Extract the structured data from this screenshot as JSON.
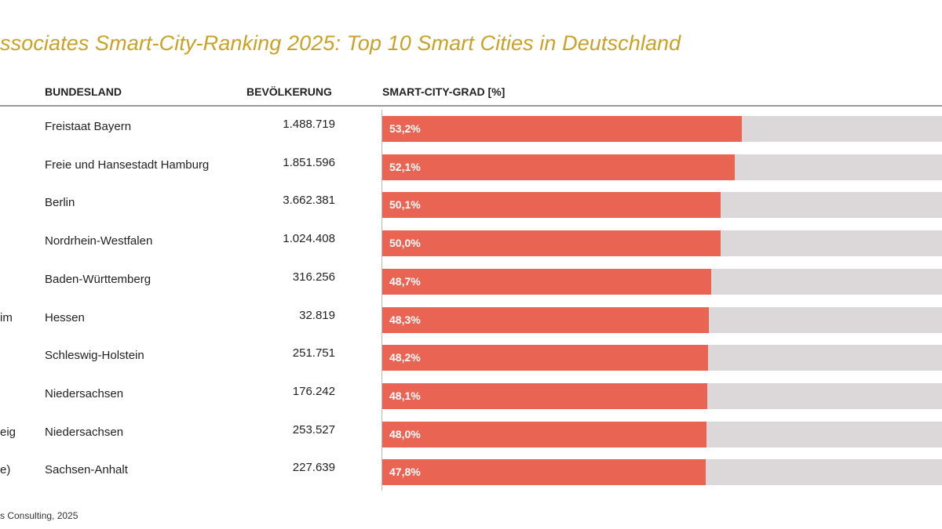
{
  "title": "ssociates Smart-City-Ranking 2025: Top 10 Smart Cities in Deutschland",
  "source": "s Consulting, 2025",
  "colors": {
    "title": "#c9a227",
    "bar": "#ea6454",
    "track": "#dcd8d9"
  },
  "chart_data": {
    "type": "bar",
    "orientation": "horizontal",
    "title": "ssociates Smart-City-Ranking 2025: Top 10 Smart Cities in Deutschland",
    "columns": [
      "BUNDESLAND",
      "BEVÖLKERUNG",
      "SMART-CITY-GRAD [%]"
    ],
    "xlim": [
      0,
      100
    ],
    "rows": [
      {
        "city_fragment": "",
        "state": "Freistaat Bayern",
        "population": "1.488.719",
        "value": 53.2,
        "label": "53,2%"
      },
      {
        "city_fragment": "",
        "state": "Freie und Hansestadt Hamburg",
        "population": "1.851.596",
        "value": 52.1,
        "label": "52,1%"
      },
      {
        "city_fragment": "",
        "state": "Berlin",
        "population": "3.662.381",
        "value": 50.1,
        "label": "50,1%"
      },
      {
        "city_fragment": "",
        "state": "Nordrhein-Westfalen",
        "population": "1.024.408",
        "value": 50.0,
        "label": "50,0%"
      },
      {
        "city_fragment": "",
        "state": "Baden-Württemberg",
        "population": "316.256",
        "value": 48.7,
        "label": "48,7%"
      },
      {
        "city_fragment": "im",
        "state": "Hessen",
        "population": "32.819",
        "value": 48.3,
        "label": "48,3%"
      },
      {
        "city_fragment": "",
        "state": "Schleswig-Holstein",
        "population": "251.751",
        "value": 48.2,
        "label": "48,2%"
      },
      {
        "city_fragment": "",
        "state": "Niedersachsen",
        "population": "176.242",
        "value": 48.1,
        "label": "48,1%"
      },
      {
        "city_fragment": "eig",
        "state": "Niedersachsen",
        "population": "253.527",
        "value": 48.0,
        "label": "48,0%"
      },
      {
        "city_fragment": "e)",
        "state": "Sachsen-Anhalt",
        "population": "227.639",
        "value": 47.8,
        "label": "47,8%"
      }
    ]
  }
}
